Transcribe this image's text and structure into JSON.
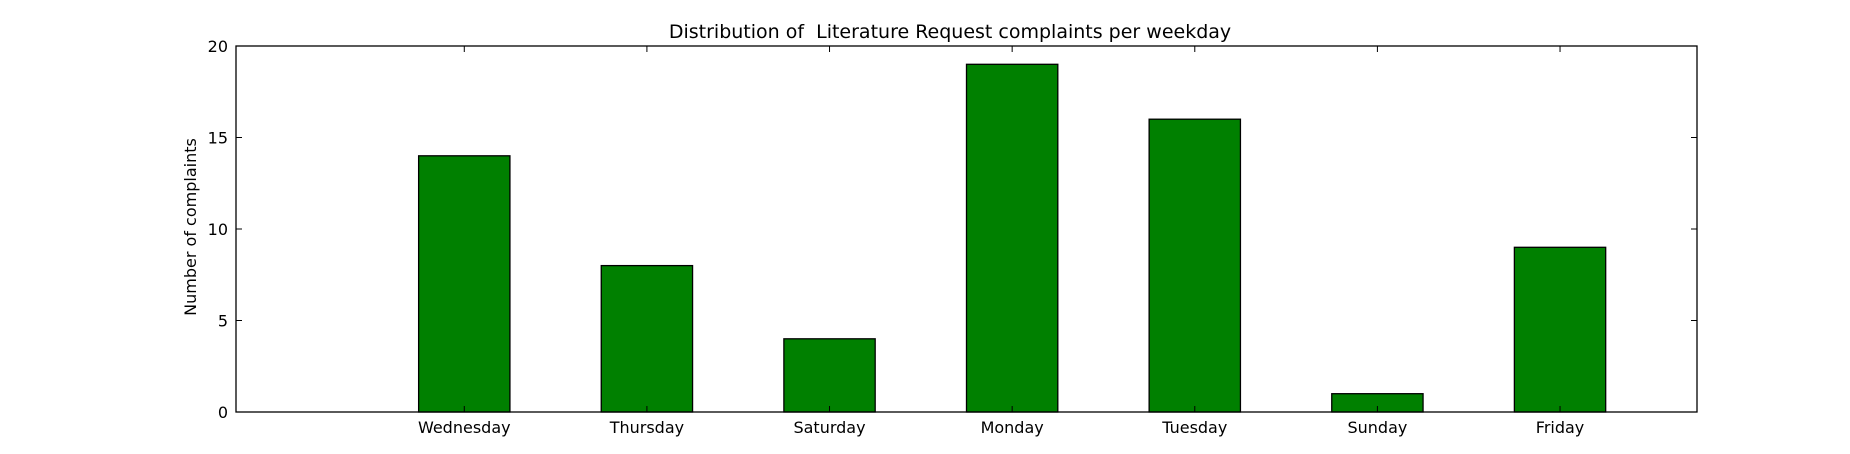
{
  "chart_data": {
    "type": "bar",
    "title": "Distribution of  Literature Request complaints per weekday",
    "xlabel": "",
    "ylabel": "Number of complaints",
    "categories": [
      "Wednesday",
      "Thursday",
      "Saturday",
      "Monday",
      "Tuesday",
      "Sunday",
      "Friday"
    ],
    "values": [
      14,
      8,
      4,
      19,
      16,
      1,
      9
    ],
    "ylim": [
      0,
      20
    ],
    "yticks": [
      0,
      5,
      10,
      15,
      20
    ],
    "xlim": [
      -1.25,
      6.75
    ],
    "bar_width": 0.5,
    "grid": false,
    "legend": "none",
    "colors": {
      "bar_fill": "#008000",
      "bar_edge": "#000000",
      "axes": "#000000"
    }
  }
}
